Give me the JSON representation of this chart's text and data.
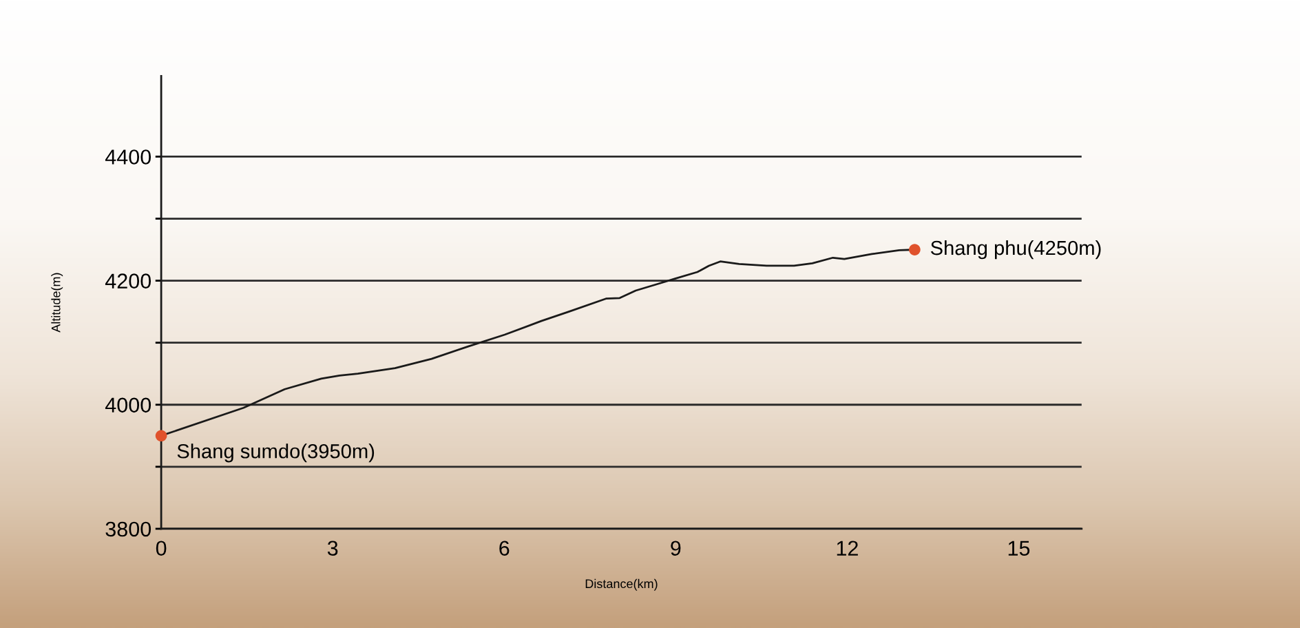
{
  "chart_data": {
    "type": "line",
    "xlabel": "Distance(km)",
    "ylabel": "Altitude(m)",
    "xlim": [
      0,
      16.1
    ],
    "ylim": [
      3800,
      4530
    ],
    "xticks": [
      0,
      3,
      6,
      9,
      12,
      15
    ],
    "yticks": [
      3800,
      {
        "value": 3900,
        "label": null
      },
      4000,
      {
        "value": 4100,
        "label": null
      },
      4200,
      {
        "value": 4300,
        "label": null
      },
      4400
    ],
    "grid": "y",
    "series": [
      {
        "color": "#1a1a1a",
        "x": [
          0,
          1.44,
          2.16,
          2.8,
          3.12,
          3.44,
          4.09,
          4.73,
          5.37,
          6.01,
          6.65,
          7.13,
          7.78,
          8.02,
          8.3,
          8.66,
          8.98,
          9.38,
          9.58,
          9.78,
          10.11,
          10.59,
          11.07,
          11.39,
          11.75,
          11.95,
          12.43,
          12.91,
          13.18
        ],
        "values": [
          3950,
          3995,
          4025,
          4042,
          4047,
          4050,
          4059,
          4074,
          4094,
          4113,
          4135,
          4150,
          4171,
          4172,
          4184,
          4194,
          4203,
          4214,
          4224,
          4231,
          4227,
          4224,
          4224,
          4228,
          4237,
          4235,
          4243,
          4249,
          4250
        ]
      },
      {
        "type": "scatter",
        "color": "#e0522c",
        "marker": "circle",
        "x": [
          0,
          13.18
        ],
        "values": [
          3950,
          4250
        ]
      }
    ],
    "annotations": [
      {
        "text": "Shang sumdo(3950m)",
        "x": 0,
        "y": 3950
      },
      {
        "text": "Shang phu(4250m)",
        "x": 13.18,
        "y": 4250
      }
    ]
  }
}
